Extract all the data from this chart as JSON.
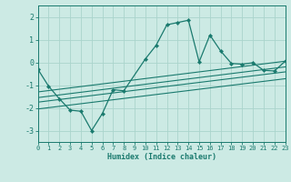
{
  "xlabel": "Humidex (Indice chaleur)",
  "ylabel": "",
  "bg_color": "#cceae4",
  "line_color": "#1a7a6e",
  "grid_color": "#aad4cc",
  "x_data": [
    0,
    1,
    2,
    3,
    4,
    5,
    6,
    7,
    8,
    10,
    11,
    12,
    13,
    14,
    15,
    16,
    17,
    18,
    19,
    20,
    21,
    22,
    23
  ],
  "y_data": [
    -0.3,
    -1.05,
    -1.6,
    -2.1,
    -2.15,
    -3.0,
    -2.25,
    -1.2,
    -1.25,
    0.15,
    0.75,
    1.65,
    1.75,
    1.85,
    0.02,
    1.2,
    0.5,
    -0.05,
    -0.08,
    -0.02,
    -0.35,
    -0.38,
    0.05
  ],
  "xlim": [
    0,
    23
  ],
  "ylim": [
    -3.5,
    2.5
  ],
  "xticks": [
    0,
    1,
    2,
    3,
    4,
    5,
    6,
    7,
    8,
    9,
    10,
    11,
    12,
    13,
    14,
    15,
    16,
    17,
    18,
    19,
    20,
    21,
    22,
    23
  ],
  "yticks": [
    -3,
    -2,
    -1,
    0,
    1,
    2
  ],
  "reg_lines": [
    {
      "x": [
        0,
        23
      ],
      "y": [
        -1.3,
        0.05
      ]
    },
    {
      "x": [
        0,
        23
      ],
      "y": [
        -1.55,
        -0.2
      ]
    },
    {
      "x": [
        0,
        23
      ],
      "y": [
        -1.75,
        -0.42
      ]
    },
    {
      "x": [
        0,
        23
      ],
      "y": [
        -2.05,
        -0.72
      ]
    }
  ]
}
